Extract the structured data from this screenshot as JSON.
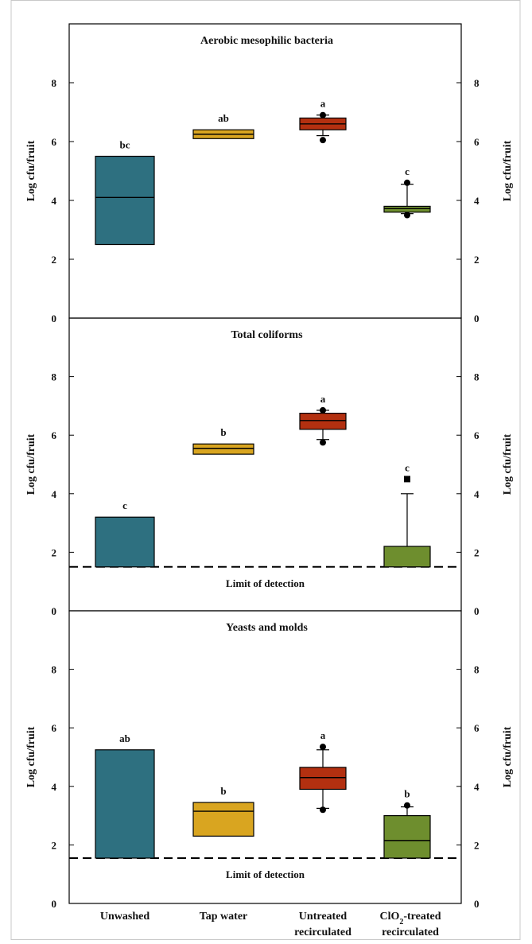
{
  "chart_data": [
    {
      "type": "box",
      "title": "Aerobic mesophilic bacteria",
      "ylabel": "Log cfu/fruit",
      "ylabel_right": "Log cfu/fruit",
      "ylim": [
        0,
        10
      ],
      "yticks": [
        "0",
        "2",
        "4",
        "6",
        "8"
      ],
      "categories": [
        "Unwashed",
        "Tap water",
        "Untreated recirculated",
        "ClO2-treated recirculated"
      ],
      "colors": [
        "#2e7080",
        "#d9a520",
        "#b33010",
        "#6e8e2e"
      ],
      "boxes": [
        {
          "q1": 2.5,
          "median": 4.1,
          "q3": 5.5,
          "whisker_low": null,
          "whisker_high": null,
          "outliers": [],
          "letter": "bc"
        },
        {
          "q1": 6.1,
          "median": 6.25,
          "q3": 6.4,
          "whisker_low": null,
          "whisker_high": null,
          "outliers": [],
          "letter": "ab"
        },
        {
          "q1": 6.4,
          "median": 6.6,
          "q3": 6.8,
          "whisker_low": 6.2,
          "whisker_high": 6.9,
          "outliers": [
            6.05,
            6.9
          ],
          "letter": "a"
        },
        {
          "q1": 3.6,
          "median": 3.72,
          "q3": 3.8,
          "whisker_low": 3.55,
          "whisker_high": 4.55,
          "outliers": [
            3.5,
            4.6
          ],
          "letter": "c"
        }
      ]
    },
    {
      "type": "box",
      "title": "Total coliforms",
      "ylabel": "Log cfu/fruit",
      "ylabel_right": "Log cfu/fruit",
      "ylim": [
        0,
        10
      ],
      "yticks": [
        "0",
        "2",
        "4",
        "6",
        "8"
      ],
      "categories": [
        "Unwashed",
        "Tap water",
        "Untreated recirculated",
        "ClO2-treated recirculated"
      ],
      "colors": [
        "#2e7080",
        "#d9a520",
        "#b33010",
        "#6e8e2e"
      ],
      "limit_of_detection": 1.5,
      "limit_label": "Limit of detection",
      "boxes": [
        {
          "q1": 1.5,
          "median": null,
          "q3": 3.2,
          "whisker_low": null,
          "whisker_high": null,
          "outliers": [],
          "letter": "c"
        },
        {
          "q1": 5.35,
          "median": 5.55,
          "q3": 5.7,
          "whisker_low": null,
          "whisker_high": null,
          "outliers": [],
          "letter": "b"
        },
        {
          "q1": 6.2,
          "median": 6.5,
          "q3": 6.75,
          "whisker_low": 5.85,
          "whisker_high": 6.85,
          "outliers": [
            5.75,
            6.85
          ],
          "letter": "a"
        },
        {
          "q1": 1.5,
          "median": null,
          "q3": 2.2,
          "whisker_low": null,
          "whisker_high": 4.0,
          "outliers": [
            4.5
          ],
          "letter": "c"
        }
      ]
    },
    {
      "type": "box",
      "title": "Yeasts and molds",
      "ylabel": "Log cfu/fruit",
      "ylabel_right": "Log cfu/fruit",
      "ylim": [
        0,
        10
      ],
      "yticks": [
        "0",
        "2",
        "4",
        "6",
        "8"
      ],
      "categories": [
        "Unwashed",
        "Tap water",
        "Untreated recirculated",
        "ClO2-treated recirculated"
      ],
      "colors": [
        "#2e7080",
        "#d9a520",
        "#b33010",
        "#6e8e2e"
      ],
      "limit_of_detection": 1.55,
      "limit_label": "Limit of detection",
      "boxes": [
        {
          "q1": 1.55,
          "median": null,
          "q3": 5.25,
          "whisker_low": null,
          "whisker_high": null,
          "outliers": [],
          "letter": "ab"
        },
        {
          "q1": 2.3,
          "median": 3.15,
          "q3": 3.45,
          "whisker_low": null,
          "whisker_high": null,
          "outliers": [],
          "letter": "b"
        },
        {
          "q1": 3.9,
          "median": 4.3,
          "q3": 4.65,
          "whisker_low": 3.25,
          "whisker_high": 5.25,
          "outliers": [
            3.2,
            5.35
          ],
          "letter": "a"
        },
        {
          "q1": 1.55,
          "median": 2.15,
          "q3": 3.0,
          "whisker_low": null,
          "whisker_high": 3.3,
          "outliers": [
            3.35
          ],
          "letter": "b"
        }
      ]
    }
  ],
  "x_labels": [
    {
      "line1": "Unwashed",
      "line2": ""
    },
    {
      "line1": "Tap water",
      "line2": ""
    },
    {
      "line1": "Untreated",
      "line2": "recirculated"
    },
    {
      "line1": "ClO",
      "sub": "2",
      "line1_rest": "-treated",
      "line2": "recirculated"
    }
  ]
}
